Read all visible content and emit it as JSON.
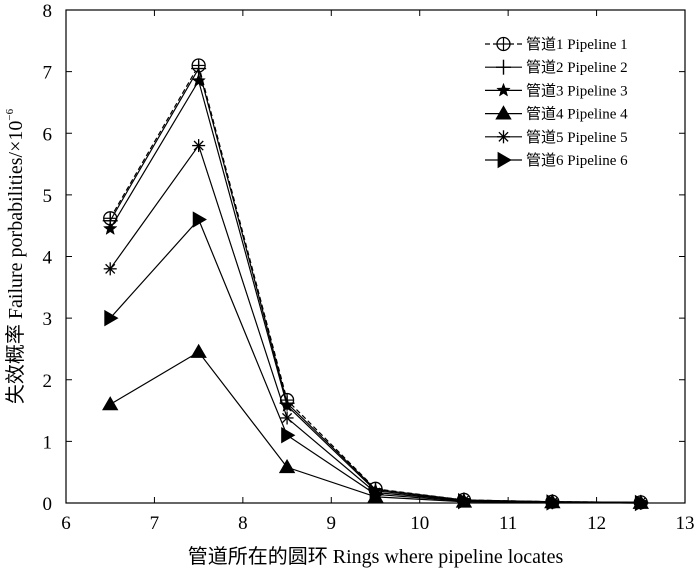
{
  "chart_data": {
    "type": "line",
    "xlabel": "管道所在的圆环 Rings where pipeline locates",
    "ylabel_main": "失效概率 Failure porbabilities/×10",
    "ylabel_exp": "−6",
    "xlim": [
      6,
      13
    ],
    "ylim": [
      0,
      8
    ],
    "xticks": [
      "6",
      "7",
      "8",
      "9",
      "10",
      "11",
      "12",
      "13"
    ],
    "yticks": [
      "0",
      "1",
      "2",
      "3",
      "4",
      "5",
      "6",
      "7",
      "8"
    ],
    "x": [
      6.5,
      7.5,
      8.5,
      9.5,
      10.5,
      11.5,
      12.5
    ],
    "grid": false,
    "legend_position": "top-right",
    "series": [
      {
        "name": "管道1 Pipeline 1",
        "marker": "circle-plus",
        "dash": true,
        "values": [
          4.62,
          7.1,
          1.67,
          0.23,
          0.05,
          0.02,
          0.01
        ]
      },
      {
        "name": "管道2 Pipeline 2",
        "marker": "plus",
        "dash": false,
        "values": [
          4.58,
          7.05,
          1.62,
          0.22,
          0.05,
          0.02,
          0.01
        ]
      },
      {
        "name": "管道3 Pipeline 3",
        "marker": "star5",
        "dash": false,
        "values": [
          4.45,
          6.85,
          1.58,
          0.2,
          0.04,
          0.02,
          0.01
        ]
      },
      {
        "name": "管道4 Pipeline 4",
        "marker": "triangle-up",
        "dash": false,
        "values": [
          1.6,
          2.45,
          0.58,
          0.1,
          0.02,
          0.01,
          0.0
        ]
      },
      {
        "name": "管道5 Pipeline 5",
        "marker": "asterisk",
        "dash": false,
        "values": [
          3.8,
          5.8,
          1.38,
          0.17,
          0.04,
          0.01,
          0.01
        ]
      },
      {
        "name": "管道6 Pipeline 6",
        "marker": "triangle-right",
        "dash": false,
        "values": [
          3.0,
          4.6,
          1.1,
          0.14,
          0.03,
          0.01,
          0.0
        ]
      }
    ]
  }
}
